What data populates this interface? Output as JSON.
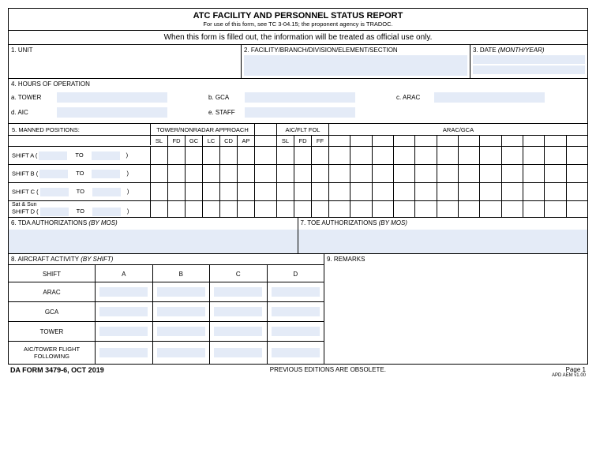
{
  "title": {
    "main": "ATC FACILITY AND PERSONNEL STATUS REPORT",
    "sub": "For use of this form, see TC 3-04.15; the proponent agency is TRADOC."
  },
  "notice": "When this form is filled out, the information will be treated as official use only.",
  "sec1": {
    "label": "1. UNIT"
  },
  "sec2": {
    "label": "2. FACILITY/BRANCH/DIVISION/ELEMENT/SECTION"
  },
  "sec3": {
    "label": "3. DATE",
    "italic": "(MONTH/YEAR)"
  },
  "sec4": {
    "label": "4. HOURS OF OPERATION",
    "a": "a. TOWER",
    "b": "b. GCA",
    "c": "c. ARAC",
    "d": "d. AIC",
    "e": "e. STAFF"
  },
  "sec5": {
    "label": "5.  MANNED POSITIONS:",
    "group1": "TOWER/NONRADAR APPROACH",
    "group2": "AIC/FLT FOL",
    "group3": "ARAC/GCA",
    "cols": {
      "sl": "SL",
      "fd": "FD",
      "gc": "GC",
      "lc": "LC",
      "cd": "CD",
      "ap": "AP",
      "ff": "FF"
    },
    "shiftA": "SHIFT A (",
    "shiftB": "SHIFT B (",
    "shiftC": "SHIFT C (",
    "shiftDpre": "Sat & Sun",
    "shiftD": "SHIFT D (",
    "to": "TO",
    "close": ")"
  },
  "sec6": {
    "label": "6. TDA AUTHORIZATIONS",
    "italic": "(BY MOS)"
  },
  "sec7": {
    "label": "7. TOE AUTHORIZATIONS",
    "italic": "(BY MOS)"
  },
  "sec8": {
    "label": "8. AIRCRAFT ACTIVITY",
    "italic": "(BY SHIFT)",
    "headers": {
      "shift": "SHIFT",
      "a": "A",
      "b": "B",
      "c": "C",
      "d": "D"
    },
    "rows": {
      "arac": "ARAC",
      "gca": "GCA",
      "tower": "TOWER",
      "aic": "AIC/TOWER FLIGHT FOLLOWING"
    }
  },
  "sec9": {
    "label": "9. REMARKS"
  },
  "footer": {
    "form": "DA FORM 3479-6, OCT 2019",
    "center": "PREVIOUS EDITIONS ARE OBSOLETE.",
    "page": "Page 1",
    "apd": "APD AEM v1.00"
  },
  "colors": {
    "fill": "#e4ebf7",
    "border": "#000000",
    "bg": "#ffffff"
  }
}
